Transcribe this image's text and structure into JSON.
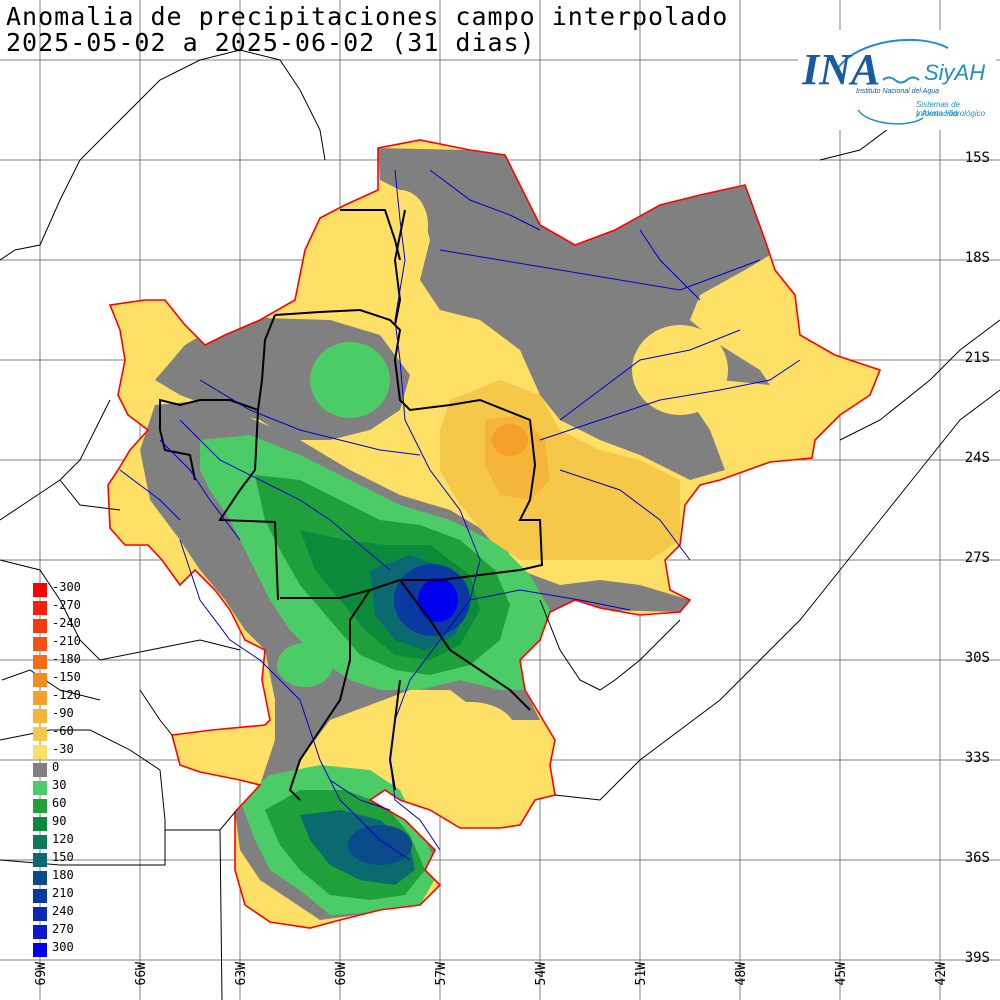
{
  "title": {
    "line1": "Anomalia de precipitaciones campo interpolado",
    "line2": "2025-05-02 a 2025-06-02 (31 dias)"
  },
  "logo": {
    "ina": "INA",
    "siyah": "SiyAH",
    "institute": "Instituto Nacional del Agua",
    "system_line1": "Sistemas de Información",
    "system_line2": "y Alerta Hidrológico",
    "colors": {
      "primary": "#1a5aa0",
      "secondary": "#1f8fc0"
    }
  },
  "lat_labels": [
    "15S",
    "18S",
    "21S",
    "24S",
    "27S",
    "30S",
    "33S",
    "36S",
    "39S"
  ],
  "lon_labels": [
    "69W",
    "66W",
    "63W",
    "60W",
    "57W",
    "54W",
    "51W",
    "48W",
    "45W",
    "42W"
  ],
  "legend": [
    {
      "label": "-300",
      "color": "#ff0000"
    },
    {
      "label": "-270",
      "color": "#f51f0a"
    },
    {
      "label": "-240",
      "color": "#f53a0f"
    },
    {
      "label": "-210",
      "color": "#f55014"
    },
    {
      "label": "-180",
      "color": "#f56a14"
    },
    {
      "label": "-150",
      "color": "#f58a1f"
    },
    {
      "label": "-120",
      "color": "#f5a02a"
    },
    {
      "label": "-90",
      "color": "#f5b43a"
    },
    {
      "label": "-60",
      "color": "#f5c84a"
    },
    {
      "label": "-30",
      "color": "#ffe066"
    },
    {
      "label": "0",
      "color": "#808080"
    },
    {
      "label": "30",
      "color": "#4ccc66"
    },
    {
      "label": "60",
      "color": "#1fa03a"
    },
    {
      "label": "90",
      "color": "#0a8a3a"
    },
    {
      "label": "120",
      "color": "#0a7a5a"
    },
    {
      "label": "150",
      "color": "#0a6a70"
    },
    {
      "label": "180",
      "color": "#0a4a8a"
    },
    {
      "label": "210",
      "color": "#0a3aa0"
    },
    {
      "label": "240",
      "color": "#0a2ab4"
    },
    {
      "label": "270",
      "color": "#0a1ac8"
    },
    {
      "label": "300",
      "color": "#0000f0"
    }
  ],
  "colors": {
    "grid": "#808080",
    "boundary": "#000000",
    "basin_outline": "#ff0000",
    "rivers": "#0000c8"
  }
}
